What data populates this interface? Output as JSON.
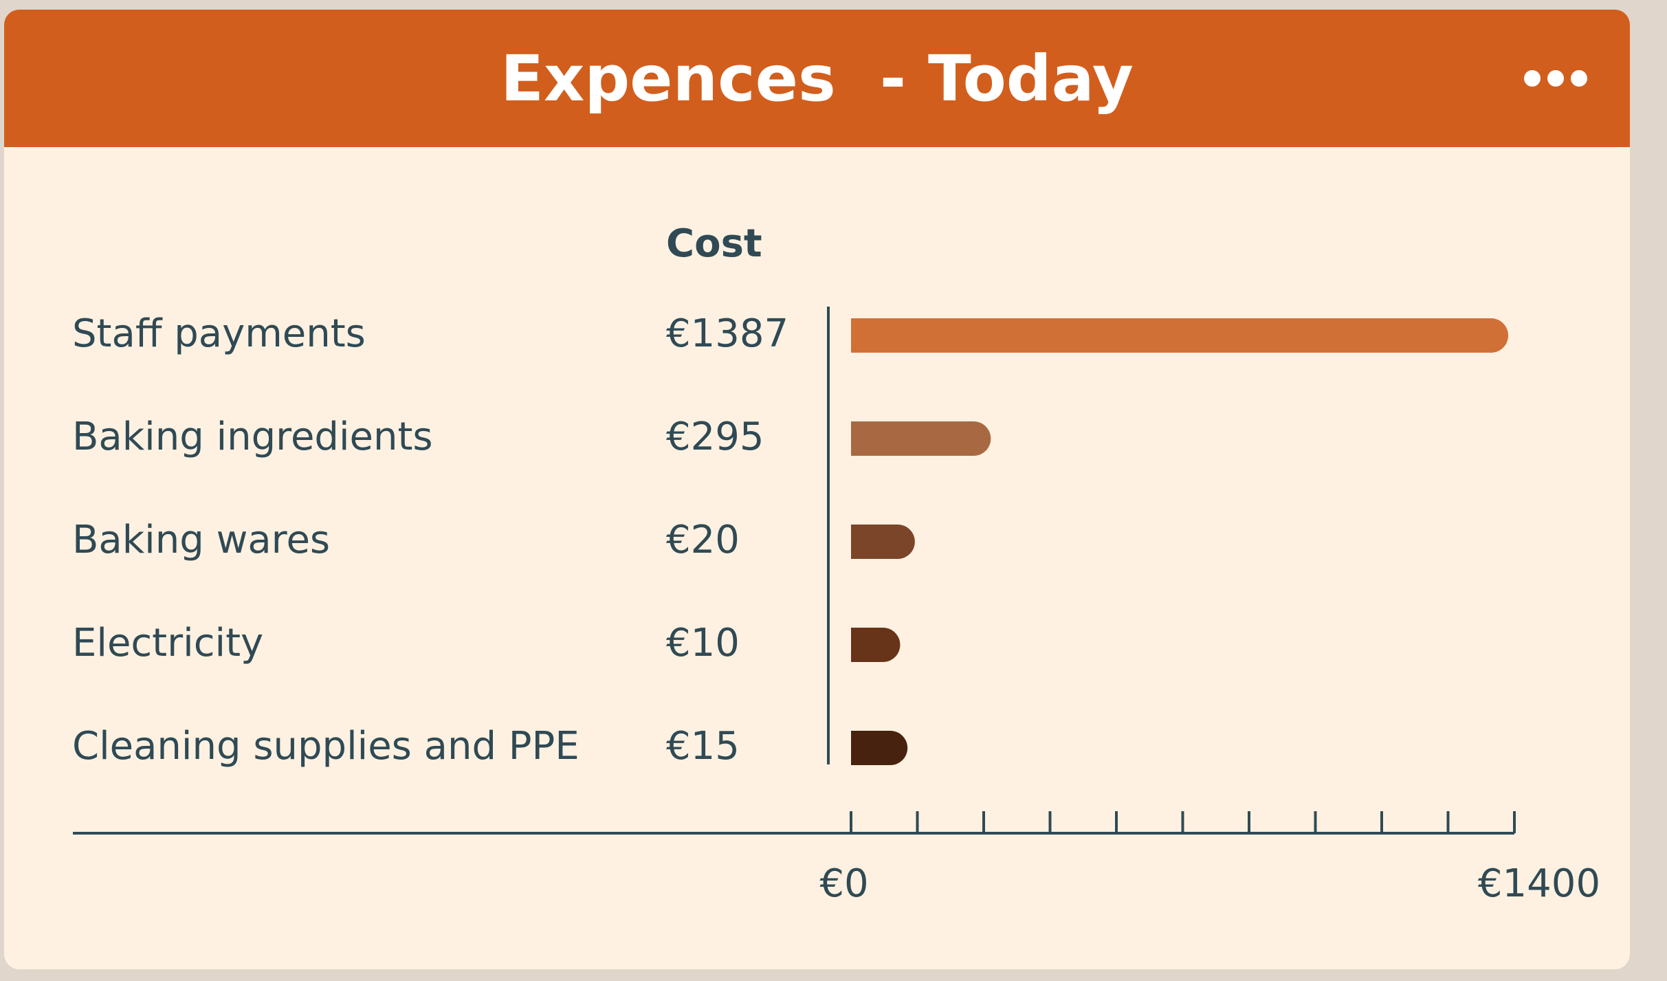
{
  "card": {
    "title": "Expences  - Today",
    "more_icon": "more-horizontal-icon"
  },
  "colors": {
    "header": "#d25e1d",
    "card_background": "#fff1e1",
    "text": "#2f4a55",
    "axis": "#2f4a55"
  },
  "chart_data": {
    "type": "bar",
    "orientation": "horizontal",
    "column_header": "Cost",
    "categories": [
      "Staff payments",
      "Baking ingredients",
      "Baking wares",
      "Electricity",
      "Cleaning supplies and PPE"
    ],
    "values": [
      1387,
      295,
      20,
      10,
      15
    ],
    "value_labels": [
      "€1387",
      "€295",
      "€20",
      "€10",
      "€15"
    ],
    "bar_colors": [
      "#d07036",
      "#a86942",
      "#7a4529",
      "#673419",
      "#47220f"
    ],
    "xlim": [
      0,
      1400
    ],
    "x_tick_labels": [
      "€0",
      "€1400"
    ],
    "minor_tick_count": 11,
    "grid": false,
    "legend": "none"
  }
}
